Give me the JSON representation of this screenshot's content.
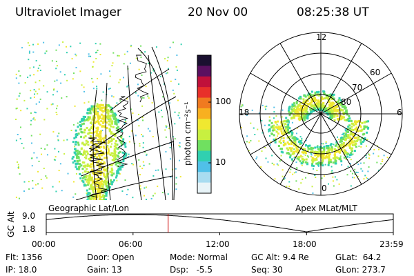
{
  "header": {
    "instrument": "Ultraviolet Imager",
    "date": "20 Nov 00",
    "time": "08:25:38 UT"
  },
  "colorbar": {
    "unit_label": "photon cm⁻²s⁻¹",
    "tick_100": "100",
    "tick_10": "10",
    "colors": [
      "#1a1030",
      "#5a1060",
      "#c0103a",
      "#e8302a",
      "#f07a20",
      "#f8b020",
      "#f0e830",
      "#c8f040",
      "#70e060",
      "#30d0b0",
      "#50c0e8",
      "#a8dcf0",
      "#e8f4f8"
    ]
  },
  "geo_panel": {
    "label": "Geographic Lat/Lon"
  },
  "apex_panel": {
    "label": "Apex MLat/MLT",
    "mlt_labels": {
      "top": "12",
      "left": "18",
      "right": "6",
      "bottom": "0"
    },
    "lat_labels": [
      "60",
      "70",
      "80"
    ]
  },
  "orbit": {
    "axis_label": "GC Alt",
    "y_ticks": [
      "9.0",
      "1.8"
    ],
    "x_ticks": [
      "00:00",
      "06:00",
      "12:00",
      "18:00",
      "23:59"
    ],
    "marker_color": "#cc0000"
  },
  "info": {
    "flt": "Flt: 1356",
    "ip": "IP: 18.0",
    "door": "Door: Open",
    "gain": "Gain: 13",
    "mode": "Mode: Normal",
    "dsp": "Dsp:   -5.5",
    "gc_alt": "GC Alt: 9.4 Re",
    "seq": "Seq: 30",
    "glat": "GLat:  64.2",
    "glon": "GLon: 273.7"
  }
}
